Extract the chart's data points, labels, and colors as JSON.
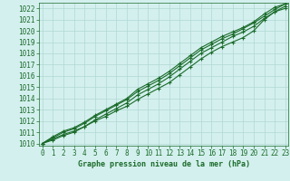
{
  "xlabel": "Graphe pression niveau de la mer (hPa)",
  "ylim": [
    1009.8,
    1022.5
  ],
  "xlim": [
    -0.3,
    23.3
  ],
  "yticks": [
    1010,
    1011,
    1012,
    1013,
    1014,
    1015,
    1016,
    1017,
    1018,
    1019,
    1020,
    1021,
    1022
  ],
  "xticks": [
    0,
    1,
    2,
    3,
    4,
    5,
    6,
    7,
    8,
    9,
    10,
    11,
    12,
    13,
    14,
    15,
    16,
    17,
    18,
    19,
    20,
    21,
    22,
    23
  ],
  "background_color": "#d4f0ee",
  "grid_color": "#b0d8d4",
  "line_color": "#1a6b2a",
  "series": [
    [
      1010.0,
      1010.4,
      1010.8,
      1011.1,
      1011.5,
      1012.0,
      1012.4,
      1012.9,
      1013.3,
      1013.9,
      1014.4,
      1014.9,
      1015.4,
      1016.1,
      1016.8,
      1017.5,
      1018.1,
      1018.6,
      1019.0,
      1019.4,
      1020.0,
      1021.0,
      1021.7,
      1022.2
    ],
    [
      1010.0,
      1010.5,
      1011.0,
      1011.3,
      1011.8,
      1012.4,
      1012.9,
      1013.4,
      1013.9,
      1014.6,
      1015.1,
      1015.6,
      1016.2,
      1016.9,
      1017.6,
      1018.3,
      1018.8,
      1019.3,
      1019.7,
      1020.2,
      1020.7,
      1021.3,
      1021.9,
      1022.4
    ],
    [
      1010.0,
      1010.3,
      1010.7,
      1011.0,
      1011.5,
      1012.1,
      1012.6,
      1013.1,
      1013.6,
      1014.3,
      1014.8,
      1015.3,
      1015.9,
      1016.6,
      1017.3,
      1018.0,
      1018.5,
      1019.0,
      1019.5,
      1019.9,
      1020.4,
      1021.1,
      1021.7,
      1022.0
    ],
    [
      1010.0,
      1010.6,
      1011.1,
      1011.4,
      1011.9,
      1012.5,
      1013.0,
      1013.5,
      1014.0,
      1014.8,
      1015.3,
      1015.8,
      1016.4,
      1017.1,
      1017.8,
      1018.5,
      1019.0,
      1019.5,
      1019.9,
      1020.3,
      1020.8,
      1021.5,
      1022.1,
      1022.4
    ]
  ],
  "marker": "+",
  "marker_size": 3.5,
  "linewidth": 0.8,
  "tick_fontsize": 5.5,
  "xlabel_fontsize": 6.0
}
